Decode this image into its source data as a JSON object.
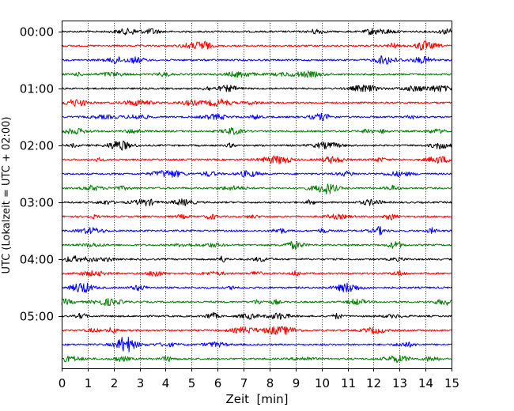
{
  "chart_data": {
    "type": "line",
    "title": "",
    "xlabel": "Zeit  [min]",
    "ylabel": "UTC (Lokalzeit = UTC + 02:00)",
    "xlim": [
      0,
      15
    ],
    "x_ticks": [
      "0",
      "1",
      "2",
      "3",
      "4",
      "5",
      "6",
      "7",
      "8",
      "9",
      "10",
      "11",
      "12",
      "13",
      "14",
      "15"
    ],
    "y_tick_labels": [
      "00:00",
      "01:00",
      "02:00",
      "03:00",
      "04:00",
      "05:00"
    ],
    "rows_per_hour": 4,
    "minutes_per_row": 15,
    "row_times": [
      "00:00",
      "00:15",
      "00:30",
      "00:45",
      "01:00",
      "01:15",
      "01:30",
      "01:45",
      "02:00",
      "02:15",
      "02:30",
      "02:45",
      "03:00",
      "03:15",
      "03:30",
      "03:45",
      "04:00",
      "04:15",
      "04:30",
      "04:45",
      "05:00",
      "05:15",
      "05:30",
      "05:45"
    ],
    "trace_colors": [
      "#000000",
      "#ff0000",
      "#0000ff",
      "#008000"
    ],
    "vertical_grid": "dotted",
    "horizontal_grid": false,
    "legend": "none"
  }
}
